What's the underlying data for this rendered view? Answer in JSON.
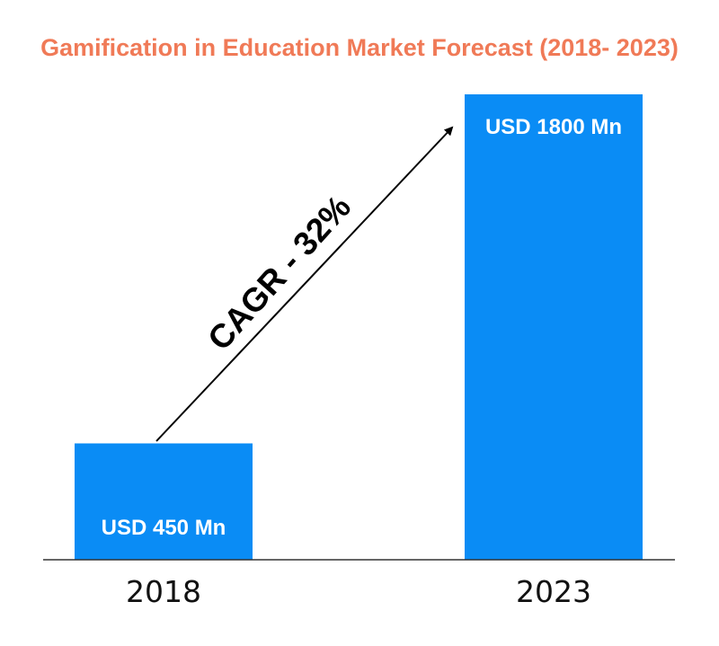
{
  "chart_data": {
    "type": "bar",
    "title": "Gamification in Education Market Forecast (2018- 2023)",
    "categories": [
      "2018",
      "2023"
    ],
    "values": [
      450,
      1800
    ],
    "data_labels": [
      "USD 450 Mn",
      "USD 1800 Mn"
    ],
    "unit": "USD Mn",
    "ylim": [
      0,
      1800
    ],
    "grid": false,
    "annotation": "CAGR - 32%"
  },
  "colors": {
    "title": "#f07a57",
    "bar": "#0a8cf5",
    "axis": "#333333",
    "arrow": "#000000"
  }
}
